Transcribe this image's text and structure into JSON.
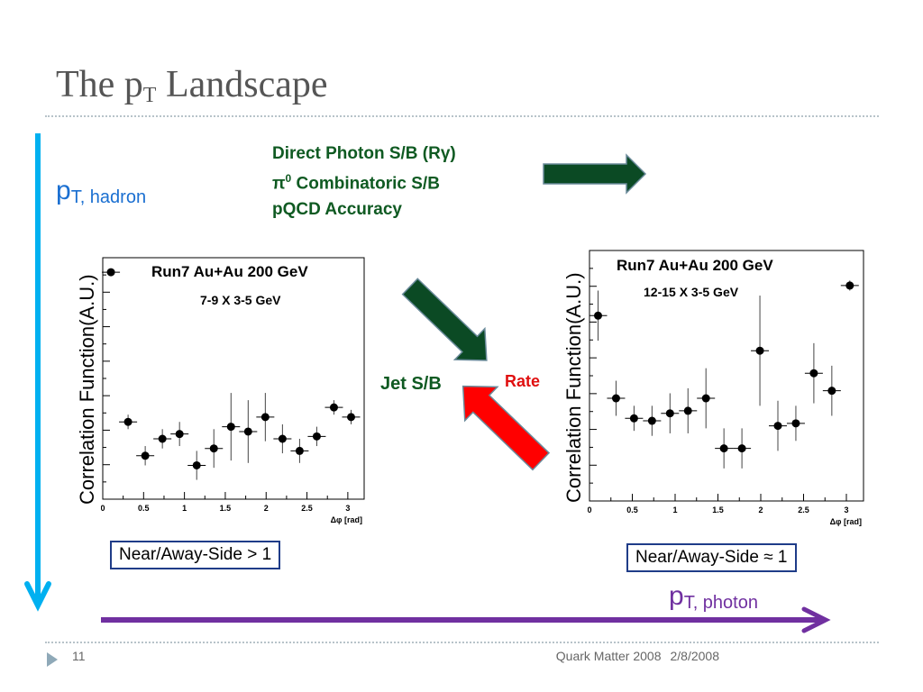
{
  "slide": {
    "title_main": "The p",
    "title_sub": "T",
    "title_end": " Landscape",
    "slide_number": "11",
    "footer_event": "Quark Matter 2008",
    "footer_date": "2/8/2008"
  },
  "labels": {
    "direct_photon_sb": "Direct Photon S/B (Rγ)",
    "pi0_symbol": "π",
    "pi0_sup": "0",
    "pi0_rest": " Combinatoric S/B",
    "pqcd": "pQCD Accuracy",
    "pt_hadron_main": "p",
    "pt_hadron_sub": "T, hadron",
    "pt_photon_main": "p",
    "pt_photon_sub": "T, photon",
    "jet_sb": "Jet S/B",
    "rate": "Rate",
    "box_left": "Near/Away-Side > 1",
    "box_right": "Near/Away-Side ≈ 1"
  },
  "colors": {
    "green_arrow": "#0b4a24",
    "red_arrow": "#ff0000",
    "blue_axis": "#00b0f0",
    "purple_axis": "#7030a0",
    "text_green": "#0f5a22",
    "rate_red": "#e01010"
  },
  "chart_data": [
    {
      "type": "scatter",
      "title": "Run7 Au+Au 200 GeV",
      "subtitle": "7-9 X 3-5 GeV",
      "ylabel": "Correlation Function(A.U.)",
      "xlabel": "Δφ [rad]",
      "xlim": [
        0,
        3.2
      ],
      "ylim": [
        0,
        1
      ],
      "xticks": [
        "0",
        "0.5",
        "1",
        "1.5",
        "2",
        "2.5",
        "3"
      ],
      "points": [
        {
          "x": 0.1,
          "y": 0.94,
          "err": 0.01
        },
        {
          "x": 0.31,
          "y": 0.32,
          "err": 0.03
        },
        {
          "x": 0.52,
          "y": 0.18,
          "err": 0.04
        },
        {
          "x": 0.73,
          "y": 0.25,
          "err": 0.04
        },
        {
          "x": 0.94,
          "y": 0.27,
          "err": 0.05
        },
        {
          "x": 1.15,
          "y": 0.14,
          "err": 0.06
        },
        {
          "x": 1.36,
          "y": 0.21,
          "err": 0.08
        },
        {
          "x": 1.57,
          "y": 0.3,
          "err": 0.14
        },
        {
          "x": 1.78,
          "y": 0.28,
          "err": 0.13
        },
        {
          "x": 1.99,
          "y": 0.34,
          "err": 0.1
        },
        {
          "x": 2.2,
          "y": 0.25,
          "err": 0.06
        },
        {
          "x": 2.41,
          "y": 0.2,
          "err": 0.05
        },
        {
          "x": 2.62,
          "y": 0.26,
          "err": 0.04
        },
        {
          "x": 2.83,
          "y": 0.38,
          "err": 0.03
        },
        {
          "x": 3.04,
          "y": 0.34,
          "err": 0.03
        }
      ]
    },
    {
      "type": "scatter",
      "title": "Run7 Au+Au 200 GeV",
      "subtitle": "12-15 X 3-5 GeV",
      "ylabel": "Correlation Function(A.U.)",
      "xlabel": "Δφ [rad]",
      "xlim": [
        0,
        3.2
      ],
      "ylim": [
        0,
        1
      ],
      "xticks": [
        "0",
        "0.5",
        "1",
        "1.5",
        "2",
        "2.5",
        "3"
      ],
      "points": [
        {
          "x": 0.1,
          "y": 0.74,
          "err": 0.1
        },
        {
          "x": 0.31,
          "y": 0.41,
          "err": 0.07
        },
        {
          "x": 0.52,
          "y": 0.33,
          "err": 0.05
        },
        {
          "x": 0.73,
          "y": 0.32,
          "err": 0.06
        },
        {
          "x": 0.94,
          "y": 0.35,
          "err": 0.08
        },
        {
          "x": 1.15,
          "y": 0.36,
          "err": 0.09
        },
        {
          "x": 1.36,
          "y": 0.41,
          "err": 0.12
        },
        {
          "x": 1.57,
          "y": 0.21,
          "err": 0.08
        },
        {
          "x": 1.78,
          "y": 0.21,
          "err": 0.08
        },
        {
          "x": 1.99,
          "y": 0.6,
          "err": 0.22
        },
        {
          "x": 2.2,
          "y": 0.3,
          "err": 0.1
        },
        {
          "x": 2.41,
          "y": 0.31,
          "err": 0.07
        },
        {
          "x": 2.62,
          "y": 0.51,
          "err": 0.12
        },
        {
          "x": 2.83,
          "y": 0.44,
          "err": 0.1
        },
        {
          "x": 3.04,
          "y": 0.86,
          "err": 0.02
        }
      ]
    }
  ]
}
